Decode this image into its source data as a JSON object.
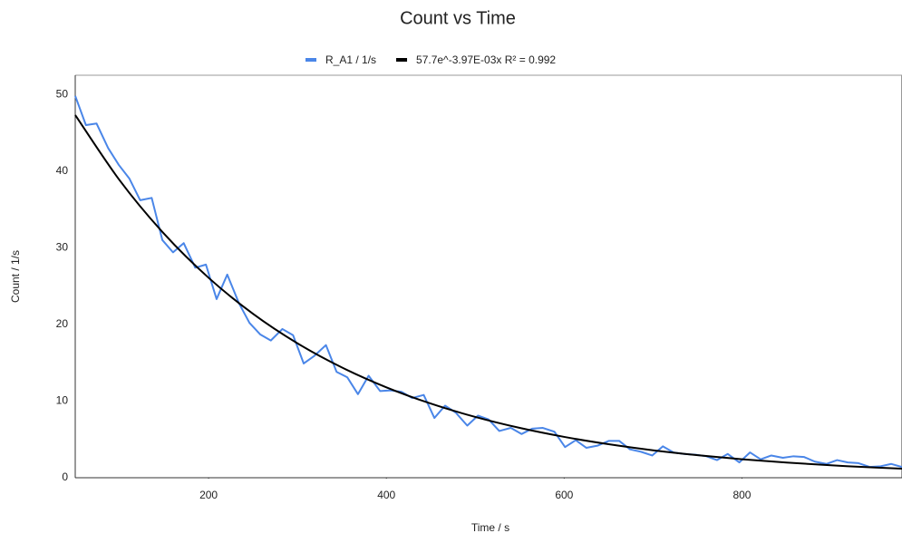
{
  "chart_data": {
    "type": "line",
    "title": "Count vs Time",
    "x_label": "Time / s",
    "y_label": "Count / 1/s",
    "x": [
      50,
      62,
      74,
      87,
      99,
      111,
      123,
      136,
      148,
      160,
      172,
      185,
      197,
      209,
      221,
      234,
      246,
      258,
      270,
      283,
      295,
      307,
      319,
      332,
      344,
      356,
      368,
      380,
      393,
      405,
      417,
      429,
      442,
      454,
      466,
      478,
      491,
      503,
      515,
      527,
      540,
      552,
      564,
      576,
      589,
      601,
      613,
      625,
      638,
      650,
      662,
      674,
      686,
      699,
      711,
      723,
      735,
      748,
      760,
      772,
      784,
      797,
      809,
      821,
      833,
      846,
      858,
      870,
      882,
      895,
      907,
      919,
      931,
      944,
      956,
      968,
      980
    ],
    "series": [
      {
        "name": "R_A1 / 1/s",
        "color": "#4a86e8",
        "values": [
          49.8,
          46,
          46.2,
          43,
          40.8,
          39,
          36.2,
          36.5,
          31,
          29.4,
          30.6,
          27.4,
          27.8,
          23.3,
          26.5,
          22.8,
          20.2,
          18.7,
          17.9,
          19.4,
          18.6,
          14.9,
          15.9,
          17.3,
          13.8,
          13.1,
          10.9,
          13.3,
          11.3,
          11.4,
          11.2,
          10.4,
          10.8,
          7.8,
          9.4,
          8.5,
          6.8,
          8.1,
          7.6,
          6.1,
          6.5,
          5.7,
          6.4,
          6.5,
          6,
          4,
          4.9,
          3.9,
          4.2,
          4.8,
          4.8,
          3.7,
          3.4,
          2.9,
          4.1,
          3.3,
          3.1,
          3,
          2.8,
          2.3,
          3.1,
          2,
          3.3,
          2.4,
          2.9,
          2.6,
          2.8,
          2.7,
          2.1,
          1.8,
          2.3,
          2,
          1.9,
          1.4,
          1.5,
          1.8,
          1.4
        ]
      },
      {
        "name": "57.7e^-3.97E-03x R² = 0.992",
        "color": "#000000",
        "smooth": true,
        "x": [
          50,
          100,
          150,
          200,
          250,
          300,
          350,
          400,
          450,
          500,
          550,
          600,
          650,
          700,
          750,
          800,
          850,
          900,
          950,
          980
        ],
        "values": [
          47.31,
          38.79,
          31.81,
          26.08,
          21.38,
          17.53,
          14.38,
          11.79,
          9.67,
          7.93,
          6.5,
          5.33,
          4.37,
          3.58,
          2.94,
          2.41,
          1.98,
          1.62,
          1.33,
          1.18
        ]
      }
    ],
    "xlim": [
      50,
      980
    ],
    "xticks": [
      200,
      400,
      600,
      800
    ],
    "ylim": [
      0,
      52.5
    ],
    "yticks": [
      0,
      10,
      20,
      30,
      40,
      50
    ],
    "grid": false
  }
}
